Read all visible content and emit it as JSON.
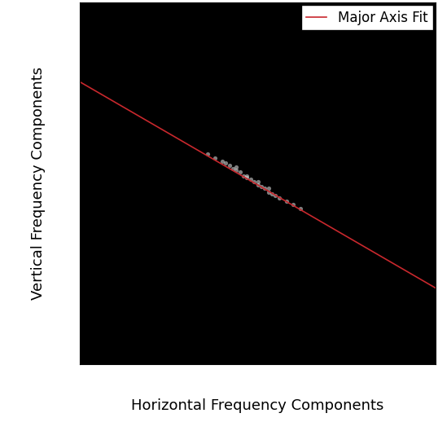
{
  "chart_data": {
    "type": "line",
    "x_label": "Horizontal Frequency Components",
    "y_label": "Vertical Frequency Components",
    "xlim": [
      0,
      1
    ],
    "ylim": [
      0,
      1
    ],
    "xticks": [],
    "yticks": [],
    "tick_labels": false,
    "legend": "upper right",
    "series": [
      {
        "name": "Major Axis Fit",
        "color": "#c8282d",
        "line_style": "solid",
        "x": [
          0,
          1
        ],
        "values": [
          0.78,
          0.21
        ]
      }
    ],
    "spectrum": {
      "type": "scatter",
      "color": "#e6e6e6",
      "marker": "o",
      "x": [
        0.36,
        0.38,
        0.4,
        0.41,
        0.42,
        0.43,
        0.44,
        0.45,
        0.46,
        0.47,
        0.48,
        0.49,
        0.5,
        0.51,
        0.52,
        0.53,
        0.54,
        0.55,
        0.56,
        0.58,
        0.6,
        0.62,
        0.44,
        0.47,
        0.5,
        0.53
      ],
      "y": [
        0.58,
        0.57,
        0.56,
        0.555,
        0.55,
        0.54,
        0.535,
        0.53,
        0.52,
        0.515,
        0.51,
        0.505,
        0.495,
        0.49,
        0.485,
        0.475,
        0.47,
        0.465,
        0.46,
        0.45,
        0.44,
        0.43,
        0.545,
        0.52,
        0.505,
        0.485
      ]
    }
  }
}
